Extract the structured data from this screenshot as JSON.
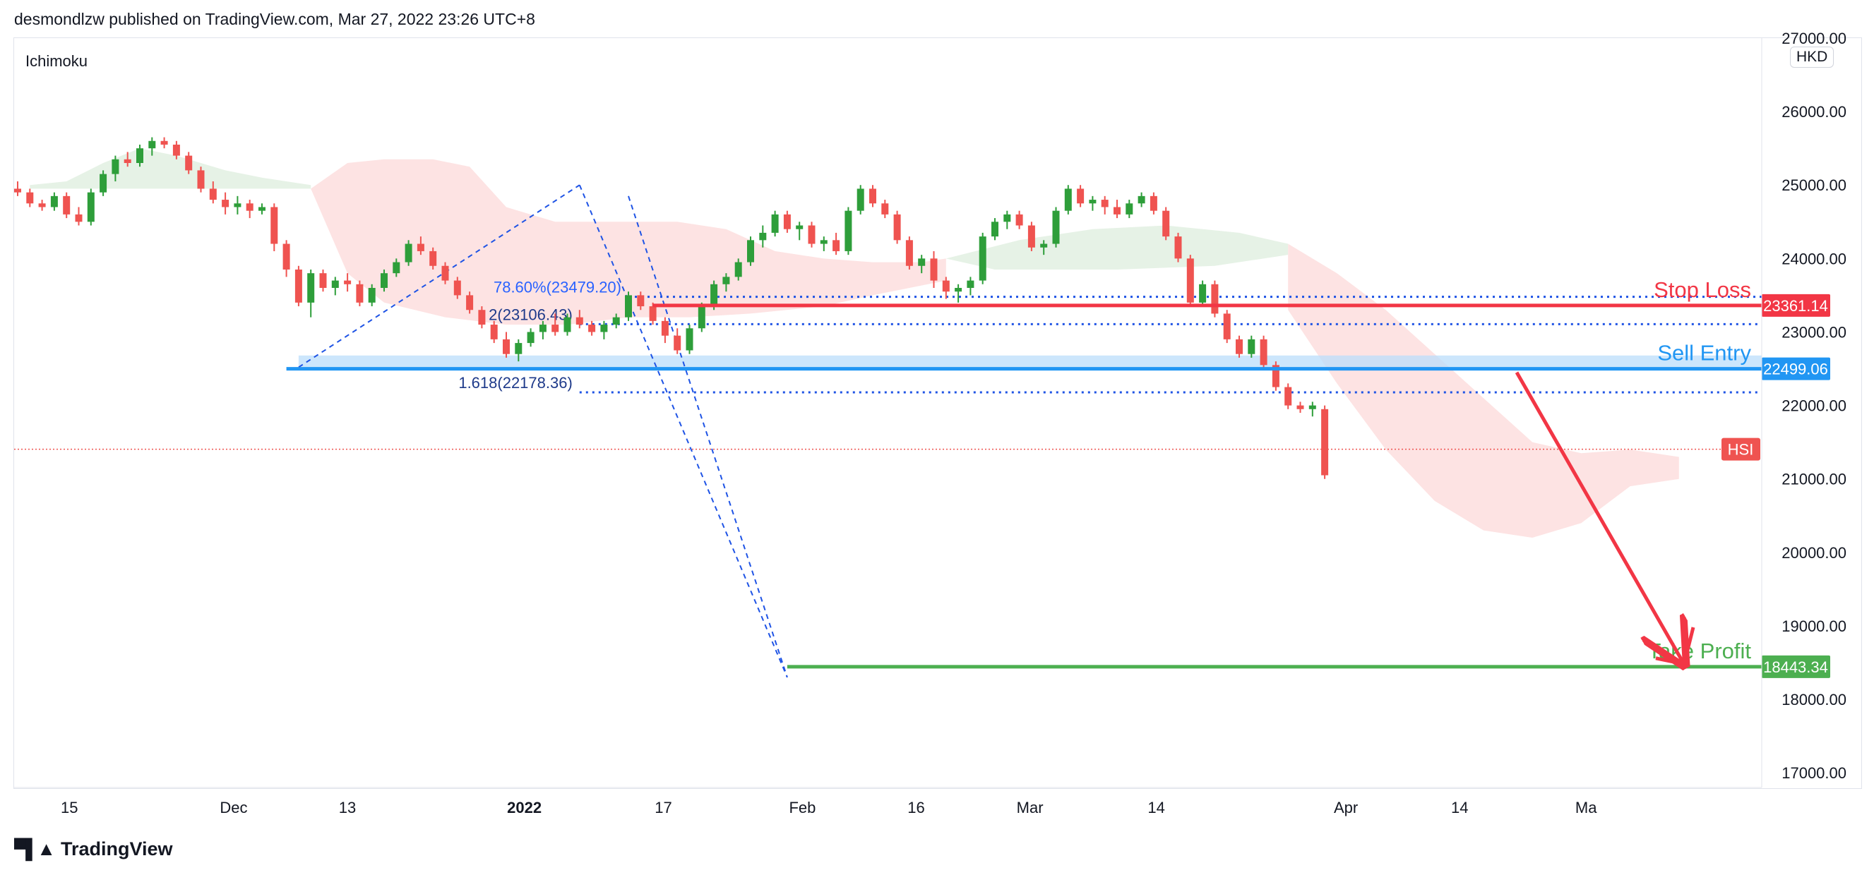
{
  "header": {
    "published_by": "desmondlzw published on TradingView.com, Mar 27, 2022 23:26 UTC+8"
  },
  "indicator": {
    "label": "Ichimoku"
  },
  "currency": {
    "label": "HKD"
  },
  "footer": {
    "brand": "TradingView",
    "brand_icon": "tradingview-logo-icon"
  },
  "colors": {
    "up": "#26a69a",
    "up_alt": "#2e9e3a",
    "down": "#ef5350",
    "stop": "#f23645",
    "entry": "#2196f3",
    "target": "#4caf50",
    "fib": "#1e53e5",
    "cloud_bull": "#e6f2e6",
    "cloud_bear": "#fde3e3"
  },
  "chart_data": {
    "type": "candlestick",
    "symbol": "HSI",
    "ylim": [
      16800,
      27000
    ],
    "y_ticks": [
      17000,
      18000,
      19000,
      20000,
      21000,
      22000,
      23000,
      24000,
      25000,
      26000,
      27000
    ],
    "y_tick_labels": [
      "17000.00",
      "18000.00",
      "19000.00",
      "20000.00",
      "21000.00",
      "22000.00",
      "23000.00",
      "24000.00",
      "25000.00",
      "26000.00",
      "27000.00"
    ],
    "x_ticks": [
      {
        "label": "15",
        "idx": 8
      },
      {
        "label": "Dec",
        "idx": 21
      },
      {
        "label": "13",
        "idx": 30
      },
      {
        "label": "2022",
        "idx": 44,
        "bold": true
      },
      {
        "label": "17",
        "idx": 55
      },
      {
        "label": "Feb",
        "idx": 66
      },
      {
        "label": "16",
        "idx": 75
      },
      {
        "label": "Mar",
        "idx": 84
      },
      {
        "label": "14",
        "idx": 94
      },
      {
        "label": "Apr",
        "idx": 109
      },
      {
        "label": "14",
        "idx": 118
      },
      {
        "label": "Ma",
        "idx": 128
      }
    ],
    "candles": [
      [
        24950,
        25050,
        24850,
        24900
      ],
      [
        24900,
        24950,
        24700,
        24750
      ],
      [
        24750,
        24800,
        24650,
        24700
      ],
      [
        24700,
        24900,
        24650,
        24850
      ],
      [
        24850,
        24900,
        24550,
        24600
      ],
      [
        24600,
        24700,
        24450,
        24500
      ],
      [
        24500,
        24950,
        24450,
        24900
      ],
      [
        24900,
        25200,
        24850,
        25150
      ],
      [
        25150,
        25400,
        25050,
        25350
      ],
      [
        25350,
        25450,
        25250,
        25300
      ],
      [
        25300,
        25550,
        25250,
        25500
      ],
      [
        25500,
        25650,
        25400,
        25600
      ],
      [
        25600,
        25650,
        25500,
        25550
      ],
      [
        25550,
        25600,
        25350,
        25400
      ],
      [
        25400,
        25450,
        25150,
        25200
      ],
      [
        25200,
        25250,
        24900,
        24950
      ],
      [
        24950,
        25050,
        24750,
        24800
      ],
      [
        24800,
        24900,
        24600,
        24700
      ],
      [
        24700,
        24850,
        24600,
        24750
      ],
      [
        24750,
        24800,
        24550,
        24650
      ],
      [
        24650,
        24750,
        24600,
        24700
      ],
      [
        24700,
        24750,
        24100,
        24200
      ],
      [
        24200,
        24250,
        23750,
        23850
      ],
      [
        23850,
        23900,
        23350,
        23400
      ],
      [
        23400,
        23850,
        23200,
        23800
      ],
      [
        23800,
        23850,
        23550,
        23600
      ],
      [
        23600,
        23750,
        23500,
        23700
      ],
      [
        23700,
        23800,
        23550,
        23650
      ],
      [
        23650,
        23700,
        23350,
        23400
      ],
      [
        23400,
        23650,
        23350,
        23600
      ],
      [
        23600,
        23850,
        23550,
        23800
      ],
      [
        23800,
        24000,
        23750,
        23950
      ],
      [
        23950,
        24250,
        23900,
        24200
      ],
      [
        24200,
        24300,
        24050,
        24100
      ],
      [
        24100,
        24150,
        23850,
        23900
      ],
      [
        23900,
        23950,
        23650,
        23700
      ],
      [
        23700,
        23750,
        23450,
        23500
      ],
      [
        23500,
        23550,
        23250,
        23300
      ],
      [
        23300,
        23350,
        23050,
        23100
      ],
      [
        23100,
        23150,
        22850,
        22900
      ],
      [
        22900,
        23000,
        22650,
        22700
      ],
      [
        22700,
        22900,
        22600,
        22850
      ],
      [
        22850,
        23050,
        22800,
        23000
      ],
      [
        23000,
        23150,
        22900,
        23100
      ],
      [
        23100,
        23250,
        22950,
        23000
      ],
      [
        23000,
        23250,
        22950,
        23200
      ],
      [
        23200,
        23300,
        23050,
        23100
      ],
      [
        23100,
        23150,
        22950,
        23000
      ],
      [
        23000,
        23150,
        22900,
        23100
      ],
      [
        23100,
        23250,
        23050,
        23200
      ],
      [
        23200,
        23550,
        23150,
        23500
      ],
      [
        23500,
        23550,
        23300,
        23350
      ],
      [
        23350,
        23400,
        23100,
        23150
      ],
      [
        23150,
        23200,
        22850,
        22950
      ],
      [
        22950,
        23050,
        22700,
        22750
      ],
      [
        22750,
        23100,
        22700,
        23050
      ],
      [
        23050,
        23400,
        23000,
        23350
      ],
      [
        23350,
        23700,
        23300,
        23650
      ],
      [
        23650,
        23800,
        23550,
        23750
      ],
      [
        23750,
        24000,
        23700,
        23950
      ],
      [
        23950,
        24300,
        23900,
        24250
      ],
      [
        24250,
        24450,
        24150,
        24350
      ],
      [
        24350,
        24650,
        24300,
        24600
      ],
      [
        24600,
        24650,
        24350,
        24400
      ],
      [
        24400,
        24500,
        24250,
        24450
      ],
      [
        24450,
        24500,
        24150,
        24200
      ],
      [
        24200,
        24300,
        24100,
        24250
      ],
      [
        24250,
        24350,
        24050,
        24100
      ],
      [
        24100,
        24700,
        24050,
        24650
      ],
      [
        24650,
        25000,
        24600,
        24950
      ],
      [
        24950,
        25000,
        24700,
        24750
      ],
      [
        24750,
        24800,
        24550,
        24600
      ],
      [
        24600,
        24650,
        24200,
        24250
      ],
      [
        24250,
        24300,
        23850,
        23900
      ],
      [
        23900,
        24050,
        23800,
        24000
      ],
      [
        24000,
        24100,
        23600,
        23700
      ],
      [
        23700,
        23750,
        23450,
        23550
      ],
      [
        23550,
        23650,
        23400,
        23600
      ],
      [
        23600,
        23750,
        23500,
        23700
      ],
      [
        23700,
        24350,
        23650,
        24300
      ],
      [
        24300,
        24550,
        24250,
        24500
      ],
      [
        24500,
        24650,
        24400,
        24600
      ],
      [
        24600,
        24650,
        24400,
        24450
      ],
      [
        24450,
        24500,
        24100,
        24150
      ],
      [
        24150,
        24250,
        24050,
        24200
      ],
      [
        24200,
        24700,
        24150,
        24650
      ],
      [
        24650,
        25000,
        24600,
        24950
      ],
      [
        24950,
        25000,
        24700,
        24750
      ],
      [
        24750,
        24850,
        24650,
        24800
      ],
      [
        24800,
        24850,
        24600,
        24700
      ],
      [
        24700,
        24800,
        24550,
        24600
      ],
      [
        24600,
        24800,
        24550,
        24750
      ],
      [
        24750,
        24900,
        24700,
        24850
      ],
      [
        24850,
        24900,
        24600,
        24650
      ],
      [
        24650,
        24700,
        24250,
        24300
      ],
      [
        24300,
        24350,
        23950,
        24000
      ],
      [
        24000,
        24050,
        23350,
        23400
      ],
      [
        23400,
        23700,
        23350,
        23650
      ],
      [
        23650,
        23700,
        23200,
        23250
      ],
      [
        23250,
        23300,
        22850,
        22900
      ],
      [
        22900,
        22950,
        22650,
        22700
      ],
      [
        22700,
        22950,
        22650,
        22900
      ],
      [
        22900,
        22950,
        22500,
        22550
      ],
      [
        22550,
        22600,
        22200,
        22250
      ],
      [
        22250,
        22300,
        21950,
        22000
      ],
      [
        22000,
        22050,
        21900,
        21950
      ],
      [
        21950,
        22050,
        21850,
        22000
      ],
      [
        21950,
        22000,
        21000,
        21050
      ]
    ],
    "levels": [
      {
        "name": "Stop Loss",
        "value": 23361.14,
        "label": "23361.14",
        "color": "#f23645"
      },
      {
        "name": "Sell Entry",
        "value": 22499.06,
        "label": "22499.06",
        "color": "#2196f3"
      },
      {
        "name": "Take Profit",
        "value": 18443.34,
        "label": "18443.34",
        "color": "#4caf50"
      }
    ],
    "fib_labels": [
      {
        "text": "78.60%(23479.20)",
        "value": 23479.2
      },
      {
        "text": "2(23106.43)",
        "value": 23106.43
      },
      {
        "text": "1.618(22178.36)",
        "value": 22178.36
      }
    ],
    "last_price": {
      "label": "HSI",
      "value": 21404
    }
  }
}
